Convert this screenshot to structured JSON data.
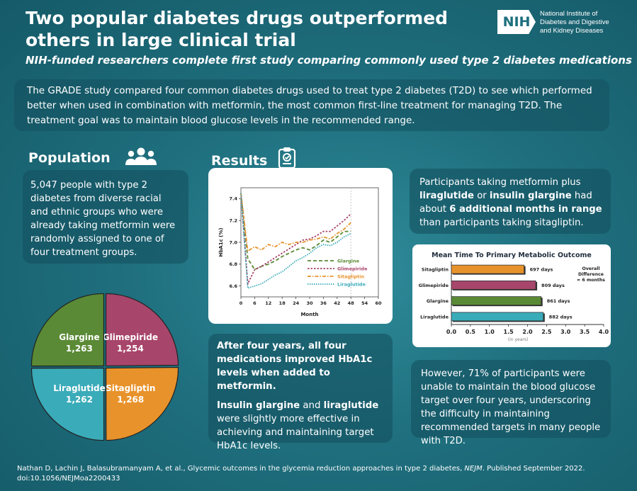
{
  "header": {
    "title": "Two popular diabetes drugs outperformed others in large clinical trial",
    "subtitle": "NIH-funded researchers complete first study comparing commonly used type 2 diabetes medications",
    "logo_text": "NIH",
    "org_line1": "National Institute of",
    "org_line2": "Diabetes and Digestive",
    "org_line3": "and Kidney Diseases"
  },
  "intro": "The GRADE study compared four common diabetes drugs used to treat type 2 diabetes (T2D) to see which performed better when used in combination with metformin, the most common first-line treatment for managing T2D. The treatment goal was to maintain blood glucose levels in the recommended range.",
  "population": {
    "heading": "Population",
    "text": "5,047 people with type 2 diabetes from diverse racial and ethnic groups who were already taking metformin were randomly assigned to one of four treatment groups."
  },
  "results": {
    "heading": "Results",
    "summary_bold": "After four years, all four medications improved HbA1c levels when added to metformin.",
    "detail_b1": "Insulin glargine",
    "detail_t1": " and ",
    "detail_b2": "liraglutide",
    "detail_t2": " were slightly more effective in achieving and maintaining target HbA1c levels."
  },
  "finding": {
    "t1": "Participants taking metformin plus ",
    "b1": "liraglutide",
    "t2": " or ",
    "b2": "insulin glargine",
    "t3": " had about ",
    "b3": "6 additional months in range",
    "t4": " than participants taking sitagliptin."
  },
  "difficulty": "However, 71% of participants were unable to maintain the blood glucose target over four years, underscoring the difficulty in maintaining recommended targets in many people with T2D.",
  "citation": {
    "text": "Nathan D, Lachin J, Balasubramanyam A, et al., Glycemic outcomes in the glycemia reduction approaches in type 2 diabetes, ",
    "journal": "NEJM",
    "published": ". Published September 2022.",
    "doi": "doi:10.1056/NEJMoa2200433"
  },
  "colors": {
    "glargine": "#5a8a35",
    "glimepiride": "#a8456a",
    "sitagliptin": "#e8922b",
    "liraglutide": "#3aabb9"
  },
  "chart_data": [
    {
      "type": "line",
      "xlabel": "Month",
      "ylabel": "HbA1c (%)",
      "xlim": [
        0,
        60
      ],
      "ylim": [
        6.5,
        7.5
      ],
      "xticks": [
        0,
        6,
        12,
        18,
        24,
        30,
        36,
        42,
        48,
        54,
        60
      ],
      "yticks": [
        6.6,
        6.8,
        7.0,
        7.2,
        7.4
      ],
      "x": [
        0,
        3,
        6,
        9,
        12,
        15,
        18,
        21,
        24,
        27,
        30,
        33,
        36,
        39,
        42,
        45,
        48
      ],
      "series": [
        {
          "name": "Glargine",
          "values": [
            7.45,
            6.85,
            6.75,
            6.78,
            6.8,
            6.83,
            6.87,
            6.9,
            6.93,
            6.95,
            6.93,
            6.97,
            7.02,
            7.0,
            7.05,
            7.1,
            7.1
          ]
        },
        {
          "name": "Glimepiride",
          "values": [
            7.45,
            6.62,
            6.75,
            6.78,
            6.82,
            6.86,
            6.9,
            6.94,
            6.98,
            7.02,
            7.03,
            7.06,
            7.1,
            7.1,
            7.15,
            7.2,
            7.26
          ]
        },
        {
          "name": "Sitagliptin",
          "values": [
            7.45,
            6.92,
            6.96,
            6.93,
            6.98,
            6.96,
            7.0,
            6.98,
            7.0,
            7.0,
            7.02,
            7.03,
            7.05,
            7.03,
            7.08,
            7.12,
            7.18
          ]
        },
        {
          "name": "Liraglutide",
          "values": [
            7.45,
            6.58,
            6.6,
            6.62,
            6.66,
            6.7,
            6.73,
            6.78,
            6.83,
            6.86,
            6.9,
            6.95,
            6.98,
            6.97,
            7.0,
            7.05,
            7.08
          ]
        }
      ],
      "legend": "center-right"
    },
    {
      "type": "bar",
      "orientation": "horizontal",
      "title": "Mean Time To Primary Metabolic Outcome",
      "categories": [
        "Sitagliptin",
        "Glimepiride",
        "Glargine",
        "Liraglutide"
      ],
      "values": [
        1.909,
        2.215,
        2.357,
        2.415
      ],
      "data_labels": [
        "697 days",
        "809 days",
        "861 days",
        "882 days"
      ],
      "xlabel": "(in years)",
      "xlim": [
        0,
        4
      ],
      "xticks": [
        "0.0",
        "0.5",
        "1.0",
        "1.5",
        "2.0",
        "2.5",
        "3.0",
        "3.5",
        "4.0"
      ],
      "annotation": [
        "Overall",
        "Difference",
        "≈ 6 months"
      ]
    },
    {
      "type": "pie",
      "categories": [
        "Glargine",
        "Glimepiride",
        "Liraglutide",
        "Sitagliptin"
      ],
      "values": [
        1263,
        1254,
        1262,
        1268
      ],
      "value_labels": [
        "1,263",
        "1,254",
        "1,262",
        "1,268"
      ]
    }
  ]
}
